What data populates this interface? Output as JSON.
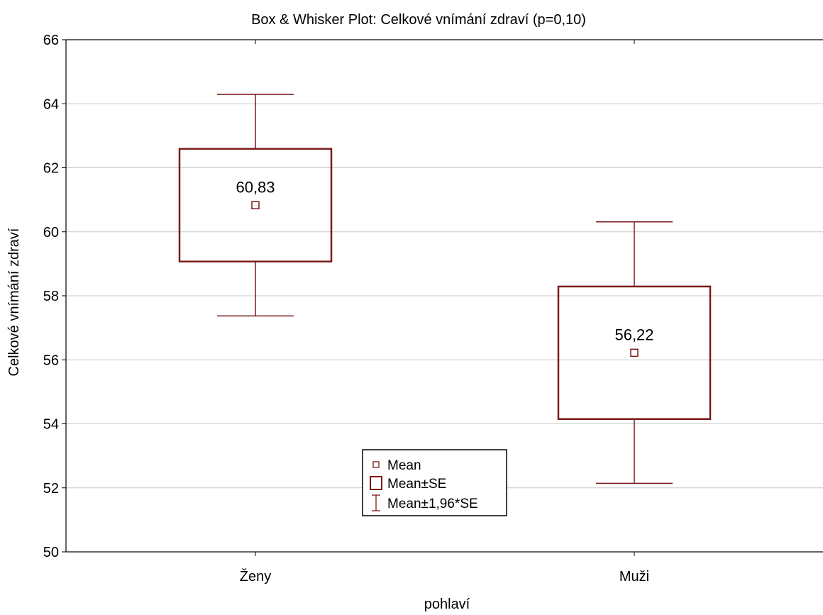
{
  "chart_data": {
    "type": "box",
    "title": "Box & Whisker Plot: Celkové vnímání zdraví (p=0,10)",
    "xlabel": "pohlaví",
    "ylabel": "Celkové vnímání zdraví",
    "ylim": [
      50,
      66
    ],
    "yticks": [
      50,
      52,
      54,
      56,
      58,
      60,
      62,
      64,
      66
    ],
    "grid": true,
    "categories": [
      "Ženy",
      "Muži"
    ],
    "boxes": [
      {
        "category": "Ženy",
        "mean": 60.83,
        "mean_label": "60,83",
        "box_low": 59.07,
        "box_high": 62.59,
        "whisker_low": 57.37,
        "whisker_high": 64.29
      },
      {
        "category": "Muži",
        "mean": 56.22,
        "mean_label": "56,22",
        "box_low": 54.15,
        "box_high": 58.29,
        "whisker_low": 52.14,
        "whisker_high": 60.31
      }
    ],
    "legend": {
      "placement": "bottom-center",
      "entries": [
        "Mean",
        "Mean±SE",
        "Mean±1,96*SE"
      ]
    },
    "series_color": "#7a1a1a"
  }
}
